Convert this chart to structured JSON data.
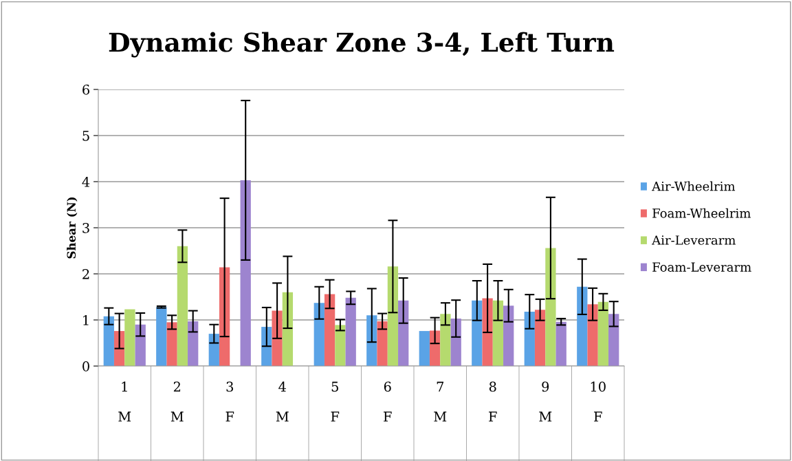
{
  "chart_data": {
    "type": "bar",
    "title": "Dynamic Shear Zone 3-4, Left Turn",
    "ylabel": "Shear (N)",
    "categories": [
      "1\n\nM",
      "2\n\nM",
      "3\n\nF",
      "4\n\nM",
      "5\n\nF",
      "6\n\nF",
      "7\n\nM",
      "8\n\nF",
      "9\n\nM",
      "10\n\nF"
    ],
    "series": [
      {
        "name": "Air-Wheelrim",
        "color": "#5aa3e6",
        "values": [
          1.08,
          1.28,
          0.7,
          0.85,
          1.37,
          1.1,
          0.76,
          1.42,
          1.18,
          1.72
        ],
        "errors": [
          0.18,
          0.02,
          0.2,
          0.42,
          0.35,
          0.58,
          null,
          0.43,
          0.37,
          0.6
        ]
      },
      {
        "name": "Foam-Wheelrim",
        "color": "#ee6b6b",
        "values": [
          0.76,
          0.95,
          2.14,
          1.2,
          1.56,
          0.97,
          0.77,
          1.47,
          1.22,
          1.34
        ],
        "errors": [
          0.38,
          0.15,
          1.5,
          0.6,
          0.31,
          0.17,
          0.28,
          0.74,
          0.23,
          0.35
        ]
      },
      {
        "name": "Air-Leverarm",
        "color": "#b5da6e",
        "values": [
          1.23,
          2.6,
          null,
          1.6,
          0.89,
          2.16,
          1.13,
          1.42,
          2.56,
          1.39
        ],
        "errors": [
          null,
          0.35,
          null,
          0.78,
          0.12,
          1.0,
          0.24,
          0.43,
          1.1,
          0.18
        ]
      },
      {
        "name": "Foam-Leverarm",
        "color": "#9d84cf",
        "values": [
          0.9,
          0.97,
          4.03,
          null,
          1.48,
          1.42,
          1.03,
          1.31,
          0.96,
          1.13
        ],
        "errors": [
          0.25,
          0.23,
          1.73,
          null,
          0.14,
          0.49,
          0.4,
          0.35,
          0.07,
          0.27
        ]
      }
    ],
    "ylim": [
      0,
      6
    ],
    "yticks": [
      0,
      1,
      2,
      3,
      4,
      5,
      6
    ],
    "grid": "y",
    "legend": "right"
  }
}
